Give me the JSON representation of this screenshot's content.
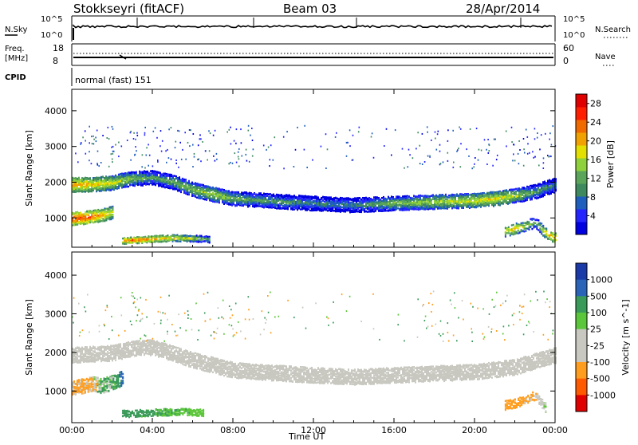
{
  "header": {
    "station": "Stokkseyri (fitACF)",
    "beam": "Beam 03",
    "date": "28/Apr/2014"
  },
  "panels": {
    "nsky": {
      "label": "N.Sky",
      "left_ticks": [
        "10^5",
        "10^0"
      ],
      "right_label": "N.Search",
      "right_ticks": [
        "10^5",
        "10^0"
      ]
    },
    "freq": {
      "label_line1": "Freq.",
      "label_line2": "[MHz]",
      "left_ticks": [
        "18",
        "8"
      ],
      "right_label": "Nave",
      "right_ticks": [
        "60",
        "0"
      ]
    },
    "cpid": {
      "label": "CPID",
      "mode": "normal (fast) 151"
    }
  },
  "colors": {
    "power": [
      "#0000e0",
      "#2424ff",
      "#1e5fbe",
      "#3e8a5e",
      "#5ba55a",
      "#8fd13a",
      "#e3e000",
      "#f2a200",
      "#f06a00",
      "#ff1e00",
      "#e00000"
    ],
    "velocity": [
      "#e00000",
      "#ff5a00",
      "#ff9d1e",
      "#c8c8c0",
      "#c8c8c0",
      "#5cc63a",
      "#3a9a5a",
      "#2a64b8",
      "#1a3aa8"
    ]
  },
  "chart_data": [
    {
      "type": "heatmap",
      "title": "",
      "xlabel": "",
      "ylabel": "Slant Range [km]",
      "xticks": [
        "00:00",
        "04:00",
        "08:00",
        "12:00",
        "16:00",
        "20:00",
        "00:00"
      ],
      "xlim": [
        0,
        24
      ],
      "yticks": [
        "1000",
        "2000",
        "3000",
        "4000"
      ],
      "ylim": [
        180,
        4600
      ],
      "colorbar": {
        "label": "Power [dB]",
        "ticks": [
          "4",
          "8",
          "12",
          "16",
          "20",
          "24",
          "28"
        ],
        "range": [
          0,
          30
        ]
      },
      "echo_band": {
        "time_h": [
          0,
          1,
          2,
          2.5,
          3,
          4,
          5,
          6,
          7,
          8,
          9,
          10,
          12,
          14,
          16,
          18,
          20,
          21,
          22,
          23,
          24
        ],
        "range_km": [
          1950,
          1960,
          2000,
          2080,
          2120,
          2150,
          2030,
          1820,
          1680,
          1560,
          1530,
          1490,
          1430,
          1380,
          1430,
          1470,
          1510,
          1560,
          1640,
          1760,
          1950
        ],
        "power_db": [
          22,
          20,
          18,
          16,
          14,
          12,
          13,
          15,
          16,
          14,
          12,
          12,
          10,
          10,
          14,
          16,
          18,
          19,
          16,
          12,
          10
        ]
      },
      "near_range_echo": {
        "time_h": [
          0,
          0.5,
          1,
          1.5,
          2
        ],
        "range_km": [
          1000,
          1020,
          1060,
          1100,
          1180
        ],
        "power_db": [
          26,
          25,
          24,
          22,
          18
        ]
      },
      "low_range_echo": {
        "time_h": [
          2.5,
          3,
          4,
          5,
          6,
          6.8
        ],
        "range_km": [
          380,
          400,
          430,
          460,
          450,
          420
        ],
        "power_db": [
          22,
          24,
          22,
          20,
          16,
          12
        ]
      },
      "late_echo": {
        "time_h": [
          21.5,
          22,
          22.5,
          23,
          23.5,
          24
        ],
        "range_km": [
          650,
          720,
          800,
          900,
          600,
          450
        ],
        "power_db": [
          18,
          20,
          16,
          12,
          20,
          22
        ]
      }
    },
    {
      "type": "heatmap",
      "title": "",
      "xlabel": "Time UT",
      "ylabel": "Slant Range [km]",
      "xticks": [
        "00:00",
        "04:00",
        "08:00",
        "12:00",
        "16:00",
        "20:00",
        "00:00"
      ],
      "xlim": [
        0,
        24
      ],
      "yticks": [
        "1000",
        "2000",
        "3000",
        "4000"
      ],
      "ylim": [
        180,
        4600
      ],
      "colorbar": {
        "label": "Velocity [m s^-1]",
        "ticks": [
          "1000",
          "500",
          "100",
          "25",
          "-25",
          "-100",
          "-500",
          "-1000"
        ]
      },
      "ground_scatter_band": {
        "time_h": [
          0,
          2,
          3,
          4,
          6,
          8,
          10,
          12,
          14,
          16,
          18,
          20,
          22,
          24
        ],
        "range_km": [
          1950,
          2000,
          2120,
          2150,
          1820,
          1560,
          1490,
          1430,
          1380,
          1430,
          1470,
          1510,
          1640,
          1950
        ],
        "velocity_ms": [
          0,
          0,
          0,
          0,
          0,
          0,
          0,
          0,
          0,
          0,
          0,
          0,
          0,
          0
        ]
      },
      "early_echo": {
        "time_h": [
          0,
          0.5,
          1,
          1.5,
          2,
          2.5
        ],
        "range_km": [
          1100,
          1150,
          1200,
          1150,
          1250,
          1350
        ],
        "velocity_ms": [
          -150,
          -200,
          -120,
          120,
          80,
          600
        ]
      },
      "low_range_echo": {
        "time_h": [
          2.5,
          3.5,
          4.5,
          5.5,
          6.5
        ],
        "range_km": [
          430,
          450,
          470,
          480,
          460
        ],
        "velocity_ms": [
          150,
          120,
          100,
          80,
          60
        ]
      },
      "late_echo": {
        "time_h": [
          21.5,
          22,
          22.5,
          23,
          23.5
        ],
        "range_km": [
          650,
          700,
          800,
          900,
          600
        ],
        "velocity_ms": [
          -150,
          -200,
          -120,
          -100,
          40
        ]
      }
    }
  ]
}
